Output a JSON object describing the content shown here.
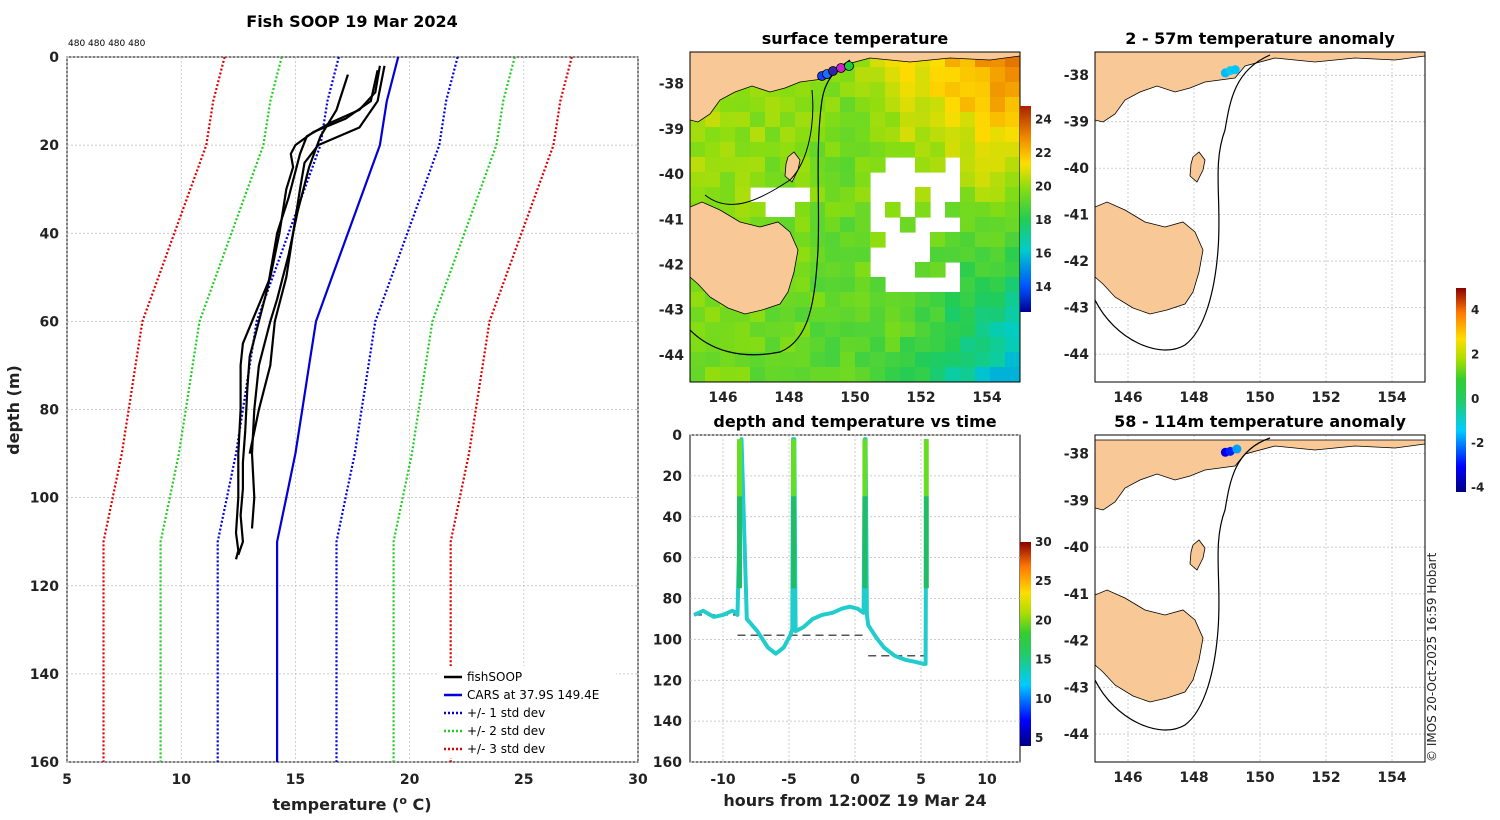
{
  "colors": {
    "fishSOOP": "#000000",
    "cars": "#0000dd",
    "std1": "#0000dd",
    "std2": "#22cc22",
    "std3": "#dd0000",
    "land": "#f8c896",
    "depth_line": "#20cccc"
  },
  "chart_data": [
    {
      "id": "profile",
      "type": "line",
      "title": "Fish SOOP 19 Mar 2024",
      "subtitle": "480 480 480 480",
      "xlabel": "temperature (",
      "xlabel_sup": "o",
      "xlabel_end": " C)",
      "ylabel": "depth (m)",
      "xlim": [
        5,
        30
      ],
      "ylim": [
        0,
        160
      ],
      "xticks": [
        "5",
        "10",
        "15",
        "20",
        "25",
        "30"
      ],
      "yticks": [
        "0",
        "20",
        "40",
        "60",
        "80",
        "100",
        "120",
        "140",
        "160"
      ],
      "legend": [
        {
          "label": "fishSOOP",
          "color": "#000000",
          "style": "solid"
        },
        {
          "label": "CARS at 37.9S 149.4E",
          "color": "#0000dd",
          "style": "solid"
        },
        {
          "label": "+/- 1 std dev",
          "color": "#0000dd",
          "style": "dotted"
        },
        {
          "label": "+/- 2 std dev",
          "color": "#22cc22",
          "style": "dotted"
        },
        {
          "label": "+/- 3 std dev",
          "color": "#dd0000",
          "style": "dotted"
        }
      ],
      "cars": {
        "depth": [
          0,
          10,
          20,
          30,
          40,
          50,
          60,
          70,
          80,
          90,
          100,
          110,
          120,
          140,
          160
        ],
        "temp": [
          19.5,
          19.0,
          18.7,
          18.0,
          17.3,
          16.6,
          15.9,
          15.6,
          15.3,
          15.0,
          14.6,
          14.2,
          14.2,
          14.2,
          14.2
        ]
      },
      "std_offsets": [
        2.6,
        5.1,
        7.6
      ],
      "casts": [
        {
          "depth": [
            3,
            10,
            14,
            17,
            20,
            22,
            25,
            30,
            40,
            50,
            60,
            65,
            70,
            80,
            90,
            100,
            108,
            112,
            114
          ],
          "temp": [
            18.6,
            18.3,
            17.2,
            15.8,
            15.0,
            14.8,
            14.9,
            14.6,
            14.3,
            13.9,
            13.1,
            12.7,
            12.6,
            12.6,
            12.5,
            12.5,
            12.4,
            12.5,
            12.4
          ]
        },
        {
          "depth": [
            2,
            8,
            12,
            15,
            18,
            22,
            26,
            32,
            40,
            52,
            60,
            68,
            75,
            85,
            92,
            98,
            104,
            110,
            113
          ],
          "temp": [
            18.7,
            18.5,
            17.8,
            16.5,
            15.5,
            15.2,
            15.0,
            14.7,
            14.2,
            13.8,
            13.4,
            13.0,
            12.9,
            12.8,
            12.7,
            12.7,
            12.6,
            12.7,
            12.5
          ]
        },
        {
          "depth": [
            4,
            12,
            18,
            25,
            35,
            45,
            55,
            60,
            70,
            80,
            90,
            100,
            107
          ],
          "temp": [
            17.3,
            16.8,
            16.1,
            15.6,
            15.1,
            14.7,
            14.2,
            13.9,
            13.4,
            13.2,
            13.1,
            13.2,
            13.1
          ]
        },
        {
          "depth": [
            2,
            10,
            16,
            20,
            24,
            30,
            40,
            50,
            60,
            70,
            80,
            85,
            90
          ],
          "temp": [
            18.9,
            18.6,
            17.8,
            16.0,
            15.4,
            15.2,
            14.9,
            14.6,
            14.1,
            13.9,
            13.4,
            13.2,
            13.0
          ]
        }
      ]
    },
    {
      "id": "sst_map",
      "type": "heatmap",
      "title": "surface temperature",
      "xticks": [
        "146",
        "148",
        "150",
        "152",
        "154"
      ],
      "yticks": [
        "-38",
        "-39",
        "-40",
        "-41",
        "-42",
        "-43",
        "-44"
      ],
      "xlim": [
        145,
        155
      ],
      "ylim": [
        -44.6,
        -37.3
      ],
      "colorbar": {
        "min": 12.5,
        "max": 24.8,
        "ticks": [
          "14",
          "16",
          "18",
          "20",
          "22",
          "24"
        ]
      }
    },
    {
      "id": "time_series",
      "type": "line",
      "title": "depth and temperature vs time",
      "xlabel": "hours from 12:00Z 19 Mar 24",
      "xticks": [
        "-10",
        "-5",
        "0",
        "5",
        "10"
      ],
      "yticks": [
        "0",
        "20",
        "40",
        "60",
        "80",
        "100",
        "120",
        "140",
        "160"
      ],
      "xlim": [
        -12.5,
        12.5
      ],
      "ylim": [
        0,
        160
      ],
      "depth_track": {
        "hours": [
          -12.2,
          -11.5,
          -10.7,
          -10.0,
          -9.3,
          -9.0,
          -8.9,
          -8.8,
          -8.7,
          -8.6,
          -8.2,
          -7.4,
          -6.6,
          -6.0,
          -5.4,
          -4.9,
          -4.75,
          -4.7,
          -4.6,
          -4.5,
          -3.9,
          -3.2,
          -2.5,
          -1.7,
          -1.0,
          -0.4,
          0.2,
          0.65,
          0.75,
          0.8,
          0.9,
          1.0,
          1.6,
          2.2,
          3.0,
          3.8,
          4.6,
          5.2,
          5.35,
          5.4
        ],
        "depth": [
          88,
          86,
          89,
          88,
          86,
          87,
          88,
          60,
          5,
          2,
          90,
          96,
          104,
          107,
          104,
          98,
          95,
          2,
          2,
          96,
          94,
          90,
          88,
          87,
          85,
          84,
          85,
          87,
          2,
          2,
          88,
          93,
          99,
          104,
          108,
          110,
          111,
          112,
          112,
          2
        ]
      },
      "bottom_segments": [
        {
          "x": [
            -12.2,
            -8.9
          ],
          "depth": 88
        },
        {
          "x": [
            -8.9,
            0.8
          ],
          "depth": 98
        },
        {
          "x": [
            1.0,
            5.4
          ],
          "depth": 108
        }
      ],
      "colorbar": {
        "min": 4,
        "max": 30,
        "ticks": [
          "5",
          "10",
          "15",
          "20",
          "25",
          "30"
        ]
      }
    },
    {
      "id": "anomaly_2_57",
      "type": "scatter",
      "title": "2 - 57m temperature anomaly",
      "xticks": [
        "146",
        "148",
        "150",
        "152",
        "154"
      ],
      "yticks": [
        "-38",
        "-39",
        "-40",
        "-41",
        "-42",
        "-43",
        "-44"
      ],
      "xlim": [
        145,
        155
      ],
      "ylim": [
        -44.6,
        -37.5
      ],
      "points": [
        {
          "lon": 148.95,
          "lat": -37.95,
          "anom": -1.6
        },
        {
          "lon": 149.1,
          "lat": -37.9,
          "anom": -1.3
        },
        {
          "lon": 149.25,
          "lat": -37.88,
          "anom": -1.5
        }
      ]
    },
    {
      "id": "anomaly_58_114",
      "type": "scatter",
      "title": "58 - 114m temperature anomaly",
      "xticks": [
        "146",
        "148",
        "150",
        "152",
        "154"
      ],
      "yticks": [
        "-38",
        "-39",
        "-40",
        "-41",
        "-42",
        "-43",
        "-44"
      ],
      "xlim": [
        145,
        155
      ],
      "ylim": [
        -44.6,
        -37.6
      ],
      "points": [
        {
          "lon": 148.95,
          "lat": -37.97,
          "anom": -3.3
        },
        {
          "lon": 149.1,
          "lat": -37.95,
          "anom": -2.8
        },
        {
          "lon": 149.3,
          "lat": -37.9,
          "anom": -1.8
        }
      ],
      "colorbar": {
        "min": -4.2,
        "max": 5.0,
        "ticks": [
          "4",
          "2",
          "0",
          "-2",
          "-4"
        ]
      }
    }
  ],
  "credit": "© IMOS 20-Oct-2025 16:59 Hobart"
}
